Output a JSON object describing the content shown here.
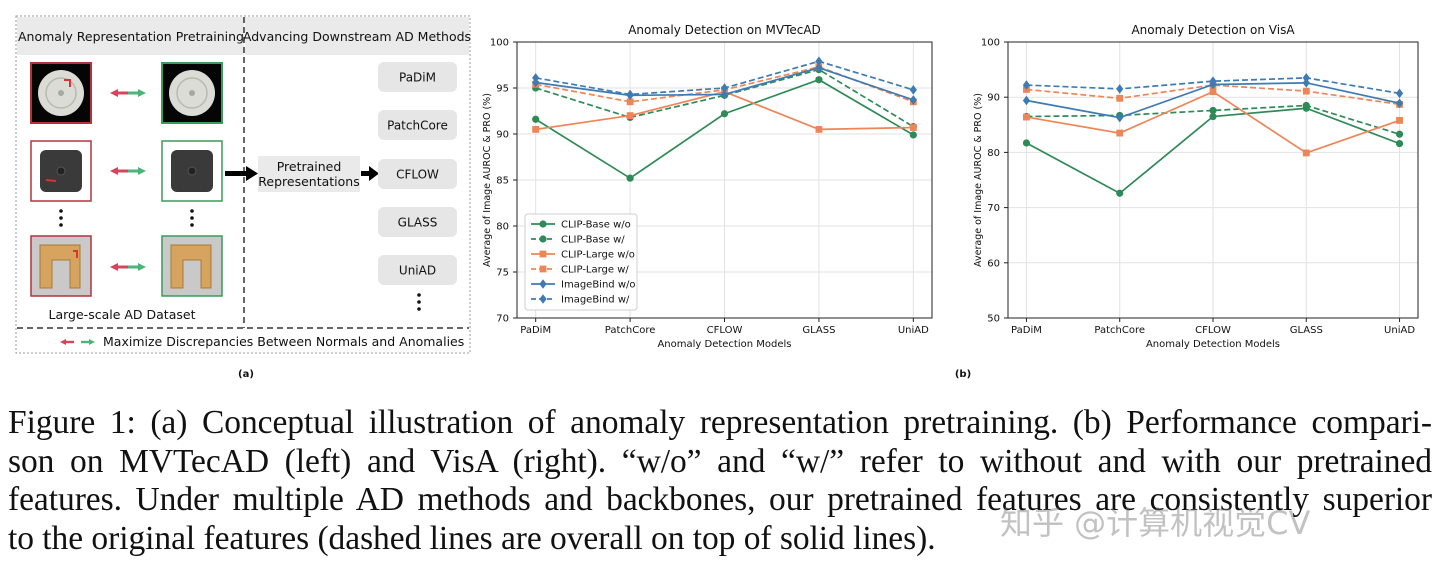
{
  "panel_a": {
    "left_title": "Anomaly Representation Pretraining",
    "right_title": "Advancing Downstream AD Methods",
    "dataset_label": "Large-scale AD Dataset",
    "pretrained_label_line1": "Pretrained",
    "pretrained_label_line2": "Representations",
    "methods": [
      "PaDiM",
      "PatchCore",
      "CFLOW",
      "GLASS",
      "UniAD"
    ],
    "bottom_text": "Maximize Discrepancies Between Normals and Anomalies",
    "sublabel": "(a)",
    "colors": {
      "anomaly_border": "#b5323d",
      "normal_border": "#3a9b5c",
      "method_box": "#e6e6e6",
      "header_bg": "#eaeaea"
    }
  },
  "panel_b": {
    "sublabel": "(b)"
  },
  "chart_data": [
    {
      "type": "line",
      "title": "Anomaly Detection on MVTecAD",
      "xlabel": "Anomaly Detection Models",
      "ylabel": "Average of Image AUROC & PRO (%)",
      "categories": [
        "PaDiM",
        "PatchCore",
        "CFLOW",
        "GLASS",
        "UniAD"
      ],
      "ylim": [
        70,
        100
      ],
      "yticks": [
        70,
        75,
        80,
        85,
        90,
        95,
        100
      ],
      "legend_position": "bottom-left",
      "series": [
        {
          "name": "CLIP-Base w/o",
          "color": "#2e8b57",
          "dashed": false,
          "marker": "circle",
          "values": [
            91.6,
            85.2,
            92.2,
            95.9,
            89.9
          ]
        },
        {
          "name": "CLIP-Base w/",
          "color": "#2e8b57",
          "dashed": true,
          "marker": "circle",
          "values": [
            95.0,
            91.8,
            94.2,
            97.0,
            90.8
          ]
        },
        {
          "name": "CLIP-Large w/o",
          "color": "#ee8557",
          "dashed": false,
          "marker": "square",
          "values": [
            90.5,
            92.0,
            94.6,
            90.5,
            90.7
          ]
        },
        {
          "name": "CLIP-Large w/",
          "color": "#ee8557",
          "dashed": true,
          "marker": "square",
          "values": [
            95.4,
            93.5,
            94.8,
            97.3,
            93.5
          ]
        },
        {
          "name": "ImageBind w/o",
          "color": "#3e7bb3",
          "dashed": false,
          "marker": "diamond",
          "values": [
            95.6,
            94.2,
            94.3,
            97.2,
            93.7
          ]
        },
        {
          "name": "ImageBind w/",
          "color": "#3e7bb3",
          "dashed": true,
          "marker": "diamond",
          "values": [
            96.1,
            94.3,
            95.0,
            97.9,
            94.8
          ]
        }
      ]
    },
    {
      "type": "line",
      "title": "Anomaly Detection on VisA",
      "xlabel": "Anomaly Detection Models",
      "ylabel": "Average of Image AUROC & PRO (%)",
      "categories": [
        "PaDiM",
        "PatchCore",
        "CFLOW",
        "GLASS",
        "UniAD"
      ],
      "ylim": [
        50,
        100
      ],
      "yticks": [
        50,
        60,
        70,
        80,
        90,
        100
      ],
      "series": [
        {
          "name": "CLIP-Base w/o",
          "color": "#2e8b57",
          "dashed": false,
          "marker": "circle",
          "values": [
            81.7,
            72.6,
            86.5,
            88.0,
            81.6
          ]
        },
        {
          "name": "CLIP-Base w/",
          "color": "#2e8b57",
          "dashed": true,
          "marker": "circle",
          "values": [
            86.5,
            86.7,
            87.6,
            88.5,
            83.3
          ]
        },
        {
          "name": "CLIP-Large w/o",
          "color": "#ee8557",
          "dashed": false,
          "marker": "square",
          "values": [
            86.4,
            83.5,
            91.0,
            79.9,
            85.8
          ]
        },
        {
          "name": "CLIP-Large w/",
          "color": "#ee8557",
          "dashed": true,
          "marker": "square",
          "values": [
            91.4,
            89.8,
            92.2,
            91.1,
            88.7
          ]
        },
        {
          "name": "ImageBind w/o",
          "color": "#3e7bb3",
          "dashed": false,
          "marker": "diamond",
          "values": [
            89.4,
            86.3,
            92.3,
            92.6,
            88.9
          ]
        },
        {
          "name": "ImageBind w/",
          "color": "#3e7bb3",
          "dashed": true,
          "marker": "diamond",
          "values": [
            92.2,
            91.5,
            92.9,
            93.5,
            90.7
          ]
        }
      ]
    }
  ],
  "caption": {
    "lines": [
      "Figure 1: (a) Conceptual illustration of anomaly representation pretraining. (b) Performance compari-",
      "son on MVTecAD (left) and VisA (right). “w/o” and “w/” refer to without and with our pretrained",
      "features. Under multiple AD methods and backbones, our pretrained features are consistently superior",
      "to the original features (dashed lines are overall on top of solid lines)."
    ]
  },
  "watermark": "知乎 @计算机视觉CV"
}
